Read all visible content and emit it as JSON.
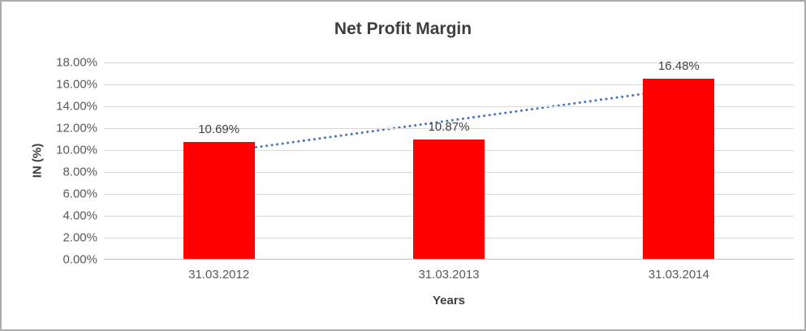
{
  "chart_data": {
    "type": "bar",
    "title": "Net Profit Margin",
    "xlabel": "Years",
    "ylabel": "IN (%)",
    "categories": [
      "31.03.2012",
      "31.03.2013",
      "31.03.2014"
    ],
    "values": [
      10.69,
      10.87,
      16.48
    ],
    "data_labels": [
      "10.69%",
      "10.87%",
      "16.48%"
    ],
    "ylim": [
      0,
      18
    ],
    "ytick_step": 2,
    "ytick_labels": [
      "0.00%",
      "2.00%",
      "4.00%",
      "6.00%",
      "8.00%",
      "10.00%",
      "12.00%",
      "14.00%",
      "16.00%",
      "18.00%"
    ],
    "grid": true,
    "legend": "none",
    "bar_color": "#ff0000",
    "trendline": {
      "type": "linear",
      "style": "dotted",
      "color": "#4472c4",
      "start_value": 9.79,
      "end_value": 15.58
    }
  }
}
